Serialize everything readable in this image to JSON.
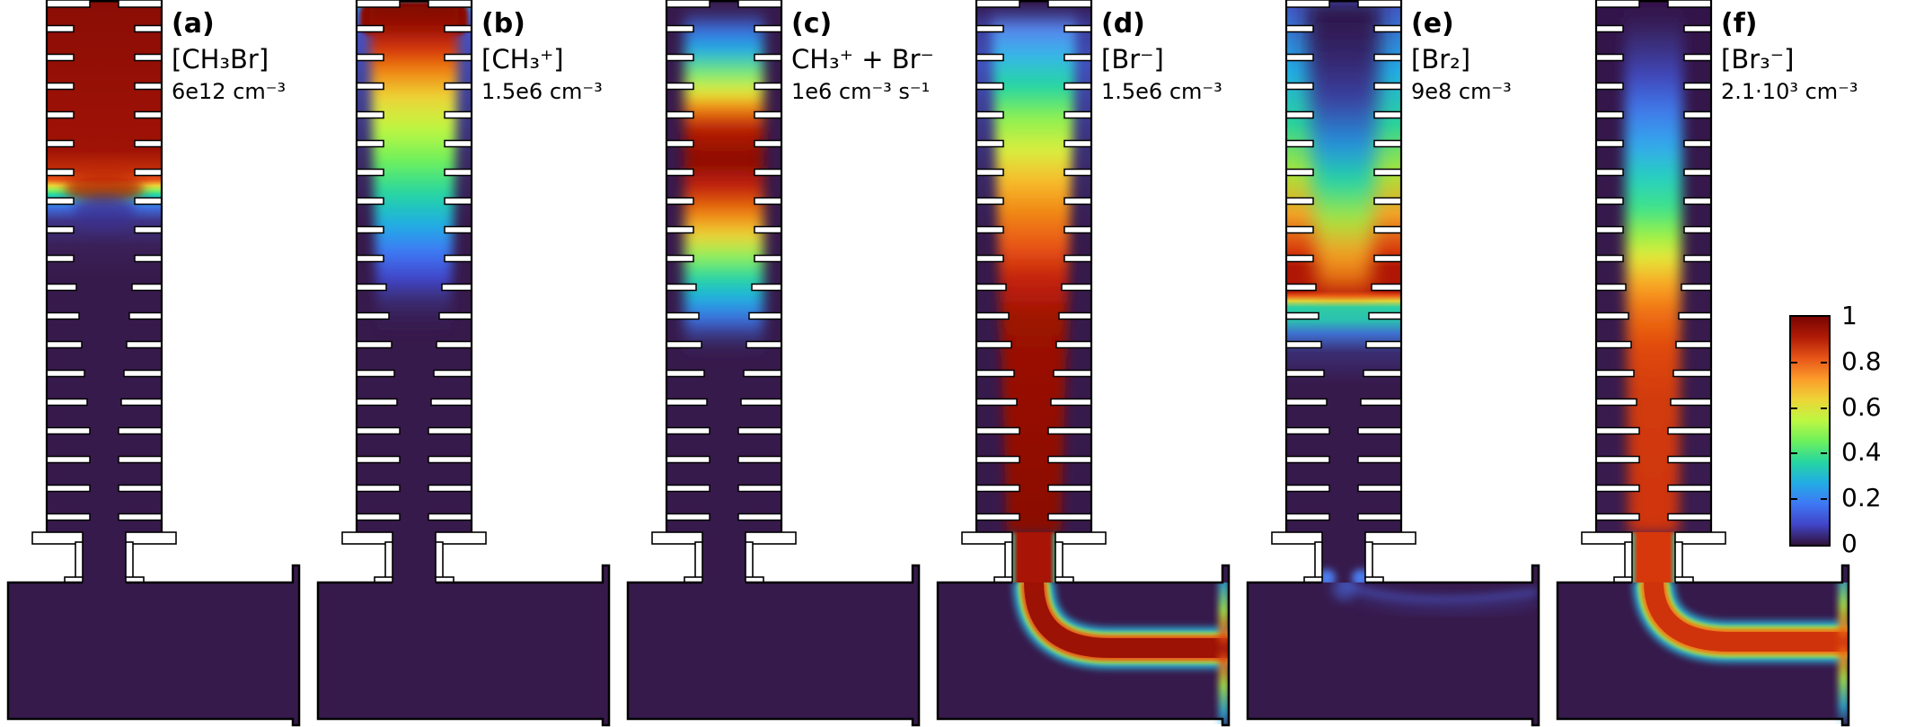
{
  "figure": {
    "description": "Six-panel 2D simulation heatmaps of species concentration / reaction-rate fields in a ribbed discharge tube connected to a flow chamber, normalized 0-1 with a shared turbo colorbar",
    "background": "#ffffff"
  },
  "chart_data": {
    "type": "heatmap",
    "colormap": "turbo",
    "normalized_range": [
      0,
      1
    ],
    "colorbar": {
      "position": "right",
      "ticks": [
        1,
        0.8,
        0.6,
        0.4,
        0.2,
        0
      ]
    },
    "panels": [
      {
        "tag": "(a)",
        "species": "[CH₃Br]",
        "peak_scale": "6e12 cm⁻³",
        "pattern": "value ≈1 fills the upper third of the ribbed tube, sharp horizontal front (red→yellow→teal→blue) at about one third of the tube height, ≈0 everywhere below and in the chamber"
      },
      {
        "tag": "(b)",
        "species": "[CH₃⁺]",
        "peak_scale": "1.5e6 cm⁻³",
        "pattern": "maximum ≈1 in a blob at the tube inlet at top, axial plume decays orange→yellow→green→cyan→blue, reaching ≈0 by mid-tube; chamber ≈0"
      },
      {
        "tag": "(c)",
        "species": "CH₃⁺ + Br⁻",
        "peak_scale": "1e6 cm⁻³ s⁻¹",
        "pattern": "elongated on-axis plume in upper tube with dark-red core ≈1 and cyan/blue rim, ≈0 near walls, in lower tube and chamber"
      },
      {
        "tag": "(d)",
        "species": "[Br⁻]",
        "peak_scale": "1.5e6 cm⁻³",
        "pattern": "grows along the axis from ≈0 at top through blue/green/yellow to a saturated red jet that fills the lower tube axis, passes the nozzle and bends right through the chamber to the outlet with thin yellow/cyan fringes"
      },
      {
        "tag": "(e)",
        "species": "[Br₂]",
        "peak_scale": "9e8 cm⁻³",
        "pattern": "maximum in a full-width orange/red band just above the end of the plasma zone, V-shaped cooler (blue/cyan) depletion along the axis from the top, sharp teal cutoff below the band, ≈0 in lower tube; faint blue trace entering the chamber"
      },
      {
        "tag": "(f)",
        "species": "[Br₃⁻]",
        "peak_scale": "2.1·10³ cm⁻³",
        "pattern": "≈0 at top, grows along the axis blue→cyan→green→yellow to an orange-red jet in the lower tube that passes the nozzle and bends right to the chamber outlet, fanning at the right wall"
      }
    ]
  },
  "panels": [
    {
      "tag": "(a)",
      "species": "[CH₃Br]",
      "scale": "6e12 cm⁻³",
      "field": {
        "wall": [
          [
            0,
            "#8a0d05"
          ],
          [
            0.28,
            "#a01206"
          ],
          [
            0.32,
            "#c63309"
          ],
          [
            0.335,
            "#e85518"
          ],
          [
            0.346,
            "#edd537"
          ],
          [
            0.354,
            "#8df05c"
          ],
          [
            0.363,
            "#26d6a1"
          ],
          [
            0.373,
            "#22ade4"
          ],
          [
            0.387,
            "#3e6fe0"
          ],
          [
            0.412,
            "#3f3488"
          ],
          [
            0.46,
            "#3a2057"
          ],
          [
            0.52,
            "#371a4c"
          ],
          [
            1,
            "#371a4c"
          ]
        ],
        "column": null,
        "bulges": true,
        "neck": {
          "fill": "#371a4c"
        },
        "stream": null,
        "wisp": false
      }
    },
    {
      "tag": "(b)",
      "species": "[CH₃⁺]",
      "scale": "1.5e6 cm⁻³",
      "field": {
        "wall": [
          [
            0,
            "#27c3c0"
          ],
          [
            0.02,
            "#3e79f5"
          ],
          [
            0.06,
            "#4553c4"
          ],
          [
            0.18,
            "#3f3f97"
          ],
          [
            0.3,
            "#3b2a66"
          ],
          [
            0.42,
            "#371a4c"
          ],
          [
            1,
            "#371a4c"
          ]
        ],
        "topBlob": "#8a0d05",
        "column": {
          "wt": 100,
          "wb": 70,
          "blur": 6,
          "stops": [
            [
              0,
              "#7a0403"
            ],
            [
              0.05,
              "#9c1205"
            ],
            [
              0.09,
              "#d6380c"
            ],
            [
              0.13,
              "#f08413"
            ],
            [
              0.18,
              "#edd537"
            ],
            [
              0.24,
              "#bdf742"
            ],
            [
              0.3,
              "#6df05c"
            ],
            [
              0.36,
              "#26d6a1"
            ],
            [
              0.42,
              "#22ade4"
            ],
            [
              0.47,
              "#3e79f5"
            ],
            [
              0.52,
              "#4146cb"
            ],
            [
              0.56,
              "#3b2f7a",
              0.9
            ],
            [
              0.63,
              "#371a4c",
              0
            ],
            [
              1,
              "#371a4c",
              0
            ]
          ]
        },
        "neck": {
          "fill": "#371a4c"
        },
        "stream": null,
        "wisp": false
      }
    },
    {
      "tag": "(c)",
      "species": "CH₃⁺ + Br⁻",
      "scale": "1e6 cm⁻³ s⁻¹",
      "field": {
        "wall": [
          [
            0,
            "#371a4c"
          ],
          [
            1,
            "#371a4c"
          ]
        ],
        "column": {
          "wt": 88,
          "wb": 88,
          "blur": 7,
          "stops": [
            [
              0,
              "#371a4c",
              0
            ],
            [
              0.05,
              "#3e79f5",
              0.85
            ],
            [
              0.09,
              "#22ade4"
            ],
            [
              0.13,
              "#6fe77d"
            ],
            [
              0.17,
              "#e3ed39"
            ],
            [
              0.2,
              "#f08413"
            ],
            [
              0.24,
              "#b51a06"
            ],
            [
              0.3,
              "#8a0d05"
            ],
            [
              0.35,
              "#c42309"
            ],
            [
              0.4,
              "#f08413"
            ],
            [
              0.44,
              "#edd537"
            ],
            [
              0.48,
              "#8df05c"
            ],
            [
              0.52,
              "#26d6a1"
            ],
            [
              0.56,
              "#22ade4"
            ],
            [
              0.6,
              "#3e79f5",
              0.85
            ],
            [
              0.67,
              "#371a4c",
              0
            ],
            [
              1,
              "#371a4c",
              0
            ]
          ]
        },
        "neck": {
          "fill": "#371a4c"
        },
        "stream": null,
        "wisp": false
      }
    },
    {
      "tag": "(d)",
      "species": "[Br⁻]",
      "scale": "1.5e6 cm⁻³",
      "field": {
        "wall": [
          [
            0,
            "#33164a"
          ],
          [
            0.05,
            "#3d3f9e"
          ],
          [
            0.12,
            "#4150bb"
          ],
          [
            0.22,
            "#3d3a8e"
          ],
          [
            0.32,
            "#3a2a68"
          ],
          [
            0.45,
            "#371a4c"
          ],
          [
            1,
            "#371a4c"
          ]
        ],
        "column": {
          "wt": 95,
          "wb": 60,
          "blur": 6,
          "stops": [
            [
              0,
              "#33164a",
              0
            ],
            [
              0.05,
              "#5a8df5",
              0.9
            ],
            [
              0.1,
              "#37b6e9"
            ],
            [
              0.16,
              "#26d6a1"
            ],
            [
              0.22,
              "#8ef150"
            ],
            [
              0.28,
              "#d9ee3e"
            ],
            [
              0.34,
              "#f7b92b"
            ],
            [
              0.4,
              "#f08413"
            ],
            [
              0.46,
              "#e85518"
            ],
            [
              0.52,
              "#c42309"
            ],
            [
              0.6,
              "#9c1205"
            ],
            [
              1,
              "#8a0d05"
            ]
          ]
        },
        "neck": {
          "fill": "#a81405",
          "fringe": "#2bd0a5"
        },
        "stream": {
          "bandY": 722,
          "core": "#9c1205",
          "mid": "#e85518"
        },
        "wisp": false
      }
    },
    {
      "tag": "(e)",
      "species": "[Br₂]",
      "scale": "9e8 cm⁻³",
      "field": {
        "wall": [
          [
            0,
            "#4553c4"
          ],
          [
            0.13,
            "#22ade4"
          ],
          [
            0.23,
            "#2bd49a"
          ],
          [
            0.32,
            "#a8e63c"
          ],
          [
            0.4,
            "#f0a126"
          ],
          [
            0.47,
            "#d6380c"
          ],
          [
            0.5,
            "#b01605"
          ],
          [
            0.545,
            "#b01605"
          ],
          [
            0.553,
            "#e85518"
          ],
          [
            0.563,
            "#e3d438"
          ],
          [
            0.575,
            "#2bd0a5"
          ],
          [
            0.6,
            "#2bbfb0"
          ],
          [
            0.625,
            "#3e6fd0"
          ],
          [
            0.66,
            "#3b2d72"
          ],
          [
            0.72,
            "#371a4c"
          ],
          [
            1,
            "#371a4c"
          ]
        ],
        "column": {
          "wt": 84,
          "wb": 40,
          "blur": 10,
          "stops": [
            [
              0,
              "#2c1240"
            ],
            [
              0.1,
              "#34256a"
            ],
            [
              0.18,
              "#3b3f9e"
            ],
            [
              0.27,
              "#2592dc"
            ],
            [
              0.34,
              "#26d6a1"
            ],
            [
              0.41,
              "#a8e63c"
            ],
            [
              0.47,
              "#f0a126"
            ],
            [
              0.52,
              "#f08413",
              0.85
            ],
            [
              0.56,
              "#e85518",
              0
            ],
            [
              1,
              "#e85518",
              0
            ]
          ]
        },
        "neck": {
          "fill": "#371a4c",
          "corners": "#4b7df0"
        },
        "stream": null,
        "wisp": true
      }
    },
    {
      "tag": "(f)",
      "species": "[Br₃⁻]",
      "scale": "2.1·10³ cm⁻³",
      "field": {
        "wall": [
          [
            0,
            "#33144a"
          ],
          [
            0.5,
            "#371a4c"
          ],
          [
            1,
            "#3a1c50"
          ]
        ],
        "column": {
          "wt": 66,
          "wb": 56,
          "blur": 7,
          "stops": [
            [
              0,
              "#33144a",
              0
            ],
            [
              0.06,
              "#3a2a70",
              0.85
            ],
            [
              0.14,
              "#414bc0",
              0.95
            ],
            [
              0.2,
              "#4176e8"
            ],
            [
              0.27,
              "#33a8ec"
            ],
            [
              0.33,
              "#28cfc0"
            ],
            [
              0.39,
              "#3fe388"
            ],
            [
              0.44,
              "#9af148"
            ],
            [
              0.48,
              "#e3e93a"
            ],
            [
              0.53,
              "#f9a825"
            ],
            [
              0.58,
              "#f07313"
            ],
            [
              0.65,
              "#e0490e"
            ],
            [
              0.75,
              "#d13b0c"
            ],
            [
              1,
              "#cf330b"
            ]
          ]
        },
        "neck": {
          "fill": "#d6380c",
          "fringe": "#2bd0a5"
        },
        "stream": {
          "bandY": 715,
          "core": "#cf330b",
          "mid": "#f07313"
        },
        "wisp": false
      }
    }
  ],
  "colorbar": {
    "ticks": [
      {
        "value": 1,
        "label": "1"
      },
      {
        "value": 0.8,
        "label": "0.8"
      },
      {
        "value": 0.6,
        "label": "0.6"
      },
      {
        "value": 0.4,
        "label": "0.4"
      },
      {
        "value": 0.2,
        "label": "0.2"
      },
      {
        "value": 0,
        "label": "0"
      }
    ],
    "stops": [
      "#30123b",
      "#4146cb",
      "#3e79f5",
      "#22ade4",
      "#26d6a1",
      "#6df05c",
      "#bdf742",
      "#edd537",
      "#fb9c2a",
      "#e85518",
      "#b11c06",
      "#7a0403"
    ]
  }
}
